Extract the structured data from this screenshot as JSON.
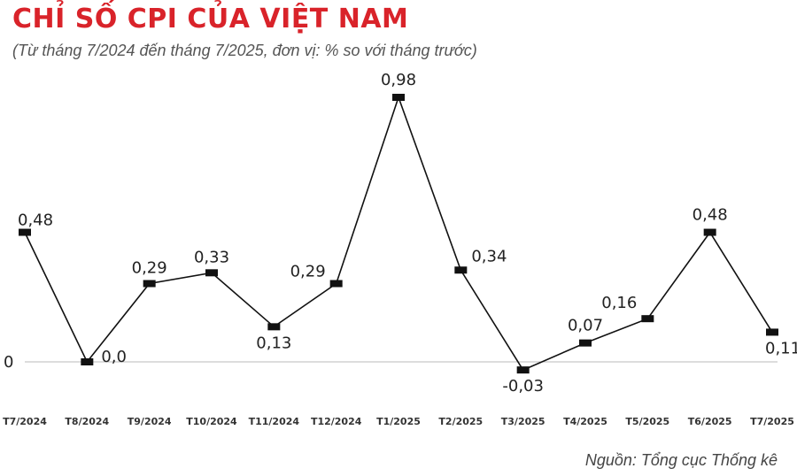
{
  "header": {
    "title": "CHỈ SỐ CPI CỦA VIỆT NAM",
    "subtitle": "(Từ tháng 7/2024 đến tháng 7/2025, đơn vị: % so với tháng trước)"
  },
  "footer": {
    "source": "Nguồn: Tổng cục Thống kê"
  },
  "colors": {
    "accent": "#d9232a",
    "line": "#111111",
    "marker": "#111111",
    "baseline": "#bbbbbb",
    "highlight_label": "#d9232a"
  },
  "chart_data": {
    "type": "line",
    "title": "CHỈ SỐ CPI CỦA VIỆT NAM",
    "xlabel": "",
    "ylabel": "",
    "grid": false,
    "legend": "none",
    "categories": [
      "T7/2024",
      "T8/2024",
      "T9/2024",
      "T10/2024",
      "T11/2024",
      "T12/2024",
      "T1/2025",
      "T2/2025",
      "T3/2025",
      "T4/2025",
      "T5/2025",
      "T6/2025",
      "T7/2025"
    ],
    "values": [
      0.48,
      0.0,
      0.29,
      0.33,
      0.13,
      0.29,
      0.98,
      0.34,
      -0.03,
      0.07,
      0.16,
      0.48,
      0.11
    ],
    "value_labels": [
      "0,48",
      "0,0",
      "0,29",
      "0,33",
      "0,13",
      "0,29",
      "0,98",
      "0,34",
      "-0,03",
      "0,07",
      "0,16",
      "0,48",
      "0,11"
    ],
    "zero_label": "0",
    "highlight_index": 12
  }
}
